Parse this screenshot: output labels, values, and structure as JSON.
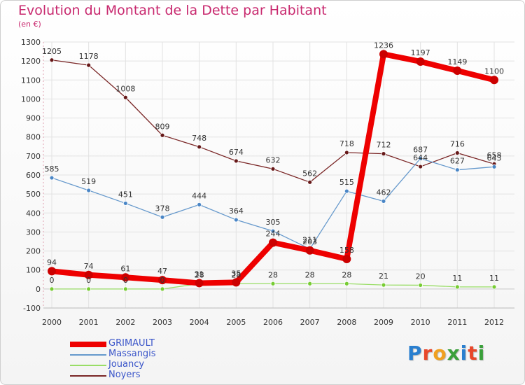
{
  "header": {
    "title": "Evolution du Montant de la Dette par Habitant",
    "subtitle": "(en €)"
  },
  "chart_data": {
    "type": "line",
    "title": "Evolution du Montant de la Dette par Habitant",
    "subtitle": "(en €)",
    "xlabel": "",
    "ylabel": "",
    "x": [
      "2000",
      "2001",
      "2002",
      "2003",
      "2004",
      "2005",
      "2006",
      "2007",
      "2008",
      "2009",
      "2010",
      "2011",
      "2012"
    ],
    "ylim": [
      -100,
      1300
    ],
    "yticks": [
      -100,
      0,
      100,
      200,
      300,
      400,
      500,
      600,
      700,
      800,
      900,
      1000,
      1100,
      1200,
      1300
    ],
    "grid": true,
    "legend_position": "bottom-left",
    "series": [
      {
        "name": "GRIMAULT",
        "color": "#ee0000",
        "marker_color": "#cc0000",
        "width": 8,
        "marker_size": 6,
        "values": [
          94,
          74,
          61,
          47,
          31,
          35,
          244,
          203,
          158,
          1236,
          1197,
          1149,
          1100
        ]
      },
      {
        "name": "Massangis",
        "color": "#6699cc",
        "marker_color": "#4a86c6",
        "width": 1.3,
        "marker_size": 3,
        "values": [
          null,
          null,
          null,
          null,
          null,
          null,
          305,
          211,
          515,
          462,
          687,
          627,
          643
        ]
      },
      {
        "name": "Jouancy",
        "color": "#99dd66",
        "marker_color": "#77cc33",
        "width": 1.3,
        "marker_size": 3,
        "values": [
          0,
          0,
          0,
          0,
          28,
          28,
          28,
          28,
          28,
          21,
          20,
          11,
          11
        ]
      },
      {
        "name": "Noyers",
        "color": "#7a2626",
        "marker_color": "#661818",
        "width": 1.3,
        "marker_size": 3,
        "values": [
          1205,
          1178,
          1008,
          809,
          748,
          674,
          632,
          562,
          718,
          712,
          644,
          716,
          658
        ]
      }
    ],
    "massangis_early_values": [
      585,
      519,
      451,
      378,
      444,
      364
    ]
  },
  "logo": {
    "letters": [
      {
        "ch": "P",
        "color": "#2a7fcf"
      },
      {
        "ch": "r",
        "color": "#e8472a"
      },
      {
        "ch": "o",
        "color": "#f0a020"
      },
      {
        "ch": "x",
        "color": "#3aa03a"
      },
      {
        "ch": "i",
        "color": "#2a7fcf"
      },
      {
        "ch": "t",
        "color": "#e8472a"
      },
      {
        "ch": "i",
        "color": "#3aa03a"
      }
    ]
  }
}
